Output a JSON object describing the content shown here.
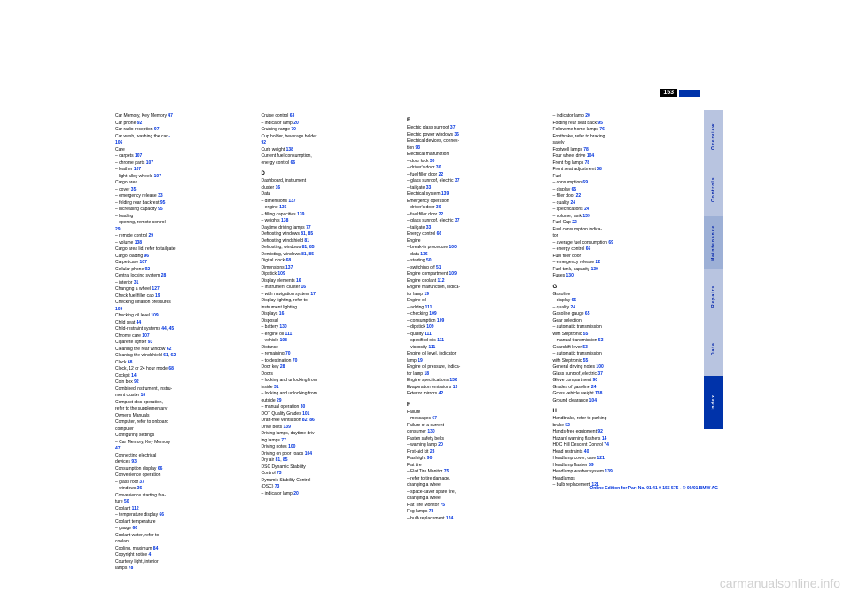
{
  "pageNumber": "153",
  "watermark": "carmanualsonline.info",
  "footer": "Online Edition for Part No. 01 41 0 155 575 - © 09/01 BMW AG",
  "tabs": [
    {
      "label": "Overview",
      "cls": "tab-light"
    },
    {
      "label": "Controls",
      "cls": "tab-light"
    },
    {
      "label": "Maintenance",
      "cls": "tab-med"
    },
    {
      "label": "Repairs",
      "cls": "tab-light"
    },
    {
      "label": "Data",
      "cls": "tab-light"
    },
    {
      "label": "Index",
      "cls": "tab-dark"
    }
  ],
  "columns": [
    [
      {
        "t": "Car Memory, Key Memory",
        "p": "47"
      },
      {
        "t": "Car phone",
        "p": "92"
      },
      {
        "t": "Car radio reception",
        "p": "97"
      },
      {
        "t": "Car wash, washing the car",
        "p": "-"
      },
      {
        "t": "   ",
        "p": "106"
      },
      {
        "t": "Care",
        "p": ""
      },
      {
        "t": "– carpets",
        "p": "107"
      },
      {
        "t": "– chrome parts",
        "p": "107"
      },
      {
        "t": "– leather",
        "p": "107"
      },
      {
        "t": "– light-alloy wheels",
        "p": "107"
      },
      {
        "t": "Cargo area",
        "p": ""
      },
      {
        "t": "– cover",
        "p": "35"
      },
      {
        "t": "– emergency release",
        "p": "33"
      },
      {
        "t": "– folding rear backrest",
        "p": "95"
      },
      {
        "t": "– increasing capacity",
        "p": "95"
      },
      {
        "t": "– loading",
        "p": ""
      },
      {
        "t": "– opening, remote control",
        "p": ""
      },
      {
        "t": "    ",
        "p": "29"
      },
      {
        "t": "– remote control",
        "p": "29"
      },
      {
        "t": "– volume",
        "p": "138"
      },
      {
        "t": "Cargo area lid, refer to tailgate",
        "p": ""
      },
      {
        "t": "Cargo loading",
        "p": "96"
      },
      {
        "t": "Carpet care",
        "p": "107"
      },
      {
        "t": "Cellular phone",
        "p": "92"
      },
      {
        "t": "Central locking system",
        "p": "28"
      },
      {
        "t": "– interior",
        "p": "31"
      },
      {
        "t": "Changing a wheel",
        "p": "127"
      },
      {
        "t": "Check fuel filler cap",
        "p": "19"
      },
      {
        "t": "Checking inflation pressures",
        "p": ""
      },
      {
        "t": "   ",
        "p": "109"
      },
      {
        "t": "Checking oil level",
        "p": "109"
      },
      {
        "t": "Child seat",
        "p": "44"
      },
      {
        "t": "Child-restraint systems",
        "p": "44",
        "p2": "45"
      },
      {
        "t": "Chrome care",
        "p": "107"
      },
      {
        "t": "Cigarette lighter",
        "p": "93"
      },
      {
        "t": "Cleaning the rear window",
        "p": "62"
      },
      {
        "t": "Cleaning the windshield",
        "p": "61",
        "p2": "62"
      },
      {
        "t": "Clock",
        "p": "68"
      },
      {
        "t": "Clock, 12 or 24 hour mode",
        "p": "68"
      },
      {
        "t": "Cockpit",
        "p": "14"
      },
      {
        "t": "Coin box",
        "p": "92"
      },
      {
        "t": "Combined instrument, instru-",
        "p": ""
      },
      {
        "t": "   ment cluster",
        "p": "16"
      },
      {
        "t": "Compact disc operation,",
        "p": ""
      },
      {
        "t": "   refer to the supplementary",
        "p": ""
      },
      {
        "t": "   Owner's Manuals",
        "p": ""
      },
      {
        "t": "Computer, refer to onboard",
        "p": ""
      },
      {
        "t": "   computer",
        "p": ""
      },
      {
        "t": "Configuring settings",
        "p": ""
      },
      {
        "t": "– Car Memory, Key Memory",
        "p": ""
      },
      {
        "t": "   ",
        "p": "47"
      },
      {
        "t": "Connecting electrical",
        "p": ""
      },
      {
        "t": "   devices",
        "p": "93"
      },
      {
        "t": "Consumption display",
        "p": "66"
      },
      {
        "t": "Convenience operation",
        "p": ""
      },
      {
        "t": "– glass roof",
        "p": "37"
      },
      {
        "t": "– windows",
        "p": "36"
      },
      {
        "t": "Convenience starting fea-",
        "p": ""
      },
      {
        "t": "   ture",
        "p": "50"
      },
      {
        "t": "Coolant",
        "p": "112"
      },
      {
        "t": "– temperature display",
        "p": "66"
      },
      {
        "t": "Coolant temperature",
        "p": ""
      },
      {
        "t": "– gauge",
        "p": "66"
      },
      {
        "t": "Coolant water, refer to",
        "p": ""
      },
      {
        "t": "   coolant",
        "p": ""
      },
      {
        "t": "Cooling, maximum",
        "p": "84"
      },
      {
        "t": "Copyright notice",
        "p": "4"
      },
      {
        "t": "Courtesy light, interior",
        "p": ""
      },
      {
        "t": "   lamps",
        "p": "78"
      }
    ],
    [
      {
        "t": "Cruise control",
        "p": "63"
      },
      {
        "t": "– indicator lamp",
        "p": "20"
      },
      {
        "t": "Cruising range",
        "p": "70"
      },
      {
        "t": "Cup holder, beverage holder",
        "p": ""
      },
      {
        "t": "   ",
        "p": "92"
      },
      {
        "t": "Curb weight",
        "p": "138"
      },
      {
        "t": "Current fuel consumption,",
        "p": ""
      },
      {
        "t": "   energy control",
        "p": "66"
      },
      {
        "t": "",
        "p": ""
      },
      {
        "t": "D",
        "p": "",
        "letter": true
      },
      {
        "t": "Dashboard, instrument",
        "p": ""
      },
      {
        "t": "   cluster",
        "p": "16"
      },
      {
        "t": "Data",
        "p": ""
      },
      {
        "t": "– dimensions",
        "p": "137"
      },
      {
        "t": "– engine",
        "p": "136"
      },
      {
        "t": "– filling capacities",
        "p": "139"
      },
      {
        "t": "– weights",
        "p": "138"
      },
      {
        "t": "Daytime driving lamps",
        "p": "77"
      },
      {
        "t": "Defrosting windows",
        "p": "81",
        "p2": "85"
      },
      {
        "t": "Defrosting windshield",
        "p": "81"
      },
      {
        "t": "Defrosting, windows",
        "p": "81",
        "p2": "85"
      },
      {
        "t": "Demisting, windows",
        "p": "81",
        "p2": "85"
      },
      {
        "t": "Digital clock",
        "p": "68"
      },
      {
        "t": "Dimensions",
        "p": "137"
      },
      {
        "t": "Dipstick",
        "p": "109"
      },
      {
        "t": "Display elements",
        "p": "16"
      },
      {
        "t": "– instrument cluster",
        "p": "16"
      },
      {
        "t": "– with navigation system",
        "p": "17"
      },
      {
        "t": "Display lighting, refer to",
        "p": ""
      },
      {
        "t": "   instrument lighting",
        "p": ""
      },
      {
        "t": "Displays",
        "p": "16"
      },
      {
        "t": "Disposal",
        "p": ""
      },
      {
        "t": "– battery",
        "p": "130"
      },
      {
        "t": "– engine oil",
        "p": "111"
      },
      {
        "t": "– vehicle",
        "p": "108"
      },
      {
        "t": "Distance",
        "p": ""
      },
      {
        "t": "– remaining",
        "p": "70"
      },
      {
        "t": "– to destination",
        "p": "70"
      },
      {
        "t": "Door key",
        "p": "28"
      },
      {
        "t": "Doors",
        "p": ""
      },
      {
        "t": "– locking and unlocking from",
        "p": ""
      },
      {
        "t": "   inside",
        "p": "31"
      },
      {
        "t": "– locking and unlocking from",
        "p": ""
      },
      {
        "t": "   outside",
        "p": "29"
      },
      {
        "t": "– manual operation",
        "p": "30"
      },
      {
        "t": "DOT Quality Grades",
        "p": "101"
      },
      {
        "t": "Draft-free ventilation",
        "p": "82",
        "p2": "86"
      },
      {
        "t": "Drive belts",
        "p": "139"
      },
      {
        "t": "Driving lamps, daytime driv-",
        "p": ""
      },
      {
        "t": "   ing lamps",
        "p": "77"
      },
      {
        "t": "Driving notes",
        "p": "100"
      },
      {
        "t": "Driving on poor roads",
        "p": "104"
      },
      {
        "t": "Dry air",
        "p": "81",
        "p2": "85"
      },
      {
        "t": "DSC Dynamic Stability",
        "p": ""
      },
      {
        "t": "   Control",
        "p": "73"
      },
      {
        "t": "Dynamic Stability Control",
        "p": ""
      },
      {
        "t": "   (DSC)",
        "p": "73"
      },
      {
        "t": "– indicator lamp",
        "p": "20"
      }
    ],
    [
      {
        "t": "E",
        "p": "",
        "letter": true
      },
      {
        "t": "Electric glass sunroof",
        "p": "37"
      },
      {
        "t": "Electric power windows",
        "p": "36"
      },
      {
        "t": "Electrical devices, connec-",
        "p": ""
      },
      {
        "t": "   tion",
        "p": "93"
      },
      {
        "t": "Electrical malfunction",
        "p": ""
      },
      {
        "t": "– door lock",
        "p": "30"
      },
      {
        "t": "– driver's door",
        "p": "30"
      },
      {
        "t": "– fuel filler door",
        "p": "22"
      },
      {
        "t": "– glass sunroof, electric",
        "p": "37"
      },
      {
        "t": "– tailgate",
        "p": "33"
      },
      {
        "t": "Electrical system",
        "p": "139"
      },
      {
        "t": "Emergency operation",
        "p": ""
      },
      {
        "t": "– driver's door",
        "p": "30"
      },
      {
        "t": "– fuel filler door",
        "p": "22"
      },
      {
        "t": "– glass sunroof, electric",
        "p": "37"
      },
      {
        "t": "– tailgate",
        "p": "33"
      },
      {
        "t": "Energy control",
        "p": "66"
      },
      {
        "t": "Engine",
        "p": ""
      },
      {
        "t": "– break-in procedure",
        "p": "100"
      },
      {
        "t": "– data",
        "p": "136"
      },
      {
        "t": "– starting",
        "p": "50"
      },
      {
        "t": "– switching off",
        "p": "51"
      },
      {
        "t": "Engine compartment",
        "p": "109"
      },
      {
        "t": "Engine coolant",
        "p": "112"
      },
      {
        "t": "Engine malfunction, indica-",
        "p": ""
      },
      {
        "t": "   tor lamp",
        "p": "19"
      },
      {
        "t": "Engine oil",
        "p": ""
      },
      {
        "t": "– adding",
        "p": "111"
      },
      {
        "t": "– checking",
        "p": "109"
      },
      {
        "t": "– consumption",
        "p": "109"
      },
      {
        "t": "– dipstick",
        "p": "109"
      },
      {
        "t": "– quality",
        "p": "111"
      },
      {
        "t": "– specified oils",
        "p": "111"
      },
      {
        "t": "– viscosity",
        "p": "111"
      },
      {
        "t": "Engine oil level, indicator",
        "p": ""
      },
      {
        "t": "   lamp",
        "p": "19"
      },
      {
        "t": "Engine oil pressure, indica-",
        "p": ""
      },
      {
        "t": "   tor lamp",
        "p": "18"
      },
      {
        "t": "Engine specifications",
        "p": "136"
      },
      {
        "t": "Evaporation emissions",
        "p": "19"
      },
      {
        "t": "Exterior mirrors",
        "p": "42"
      },
      {
        "t": "",
        "p": ""
      },
      {
        "t": "F",
        "p": "",
        "letter": true
      },
      {
        "t": "Failure",
        "p": ""
      },
      {
        "t": "– messages",
        "p": "67"
      },
      {
        "t": "Failure of a current",
        "p": ""
      },
      {
        "t": "   consumer",
        "p": "130"
      },
      {
        "t": "Fasten safety belts",
        "p": ""
      },
      {
        "t": "– warning lamp",
        "p": "20"
      },
      {
        "t": "First-aid kit",
        "p": "23"
      },
      {
        "t": "Flashlight",
        "p": "90"
      },
      {
        "t": "Flat tire",
        "p": ""
      },
      {
        "t": "– Flat Tire Monitor",
        "p": "75"
      },
      {
        "t": "– refer to tire damage,",
        "p": ""
      },
      {
        "t": "   changing a wheel",
        "p": ""
      },
      {
        "t": "– space-saver spare tire,",
        "p": ""
      },
      {
        "t": "   changing a wheel",
        "p": ""
      },
      {
        "t": "Flat Tire Monitor",
        "p": "75"
      },
      {
        "t": "Fog lamps",
        "p": "78"
      },
      {
        "t": "– bulb replacement",
        "p": "124"
      }
    ],
    [
      {
        "t": "– indicator lamp",
        "p": "20"
      },
      {
        "t": "Folding rear seat back",
        "p": "95"
      },
      {
        "t": "Follow me home lamps",
        "p": "76"
      },
      {
        "t": "Footbrake, refer to braking",
        "p": ""
      },
      {
        "t": "   safely",
        "p": ""
      },
      {
        "t": "Footwell lamps",
        "p": "78"
      },
      {
        "t": "Four wheel drive",
        "p": "104"
      },
      {
        "t": "Front fog lamps",
        "p": "78"
      },
      {
        "t": "Front seat adjustment",
        "p": "38"
      },
      {
        "t": "Fuel",
        "p": ""
      },
      {
        "t": "– consumption",
        "p": "69"
      },
      {
        "t": "– display",
        "p": "65"
      },
      {
        "t": "– filler door",
        "p": "22"
      },
      {
        "t": "– quality",
        "p": "24"
      },
      {
        "t": "– specifications",
        "p": "24"
      },
      {
        "t": "– volume, tank",
        "p": "139"
      },
      {
        "t": "Fuel Cap",
        "p": "22"
      },
      {
        "t": "Fuel consumption indica-",
        "p": ""
      },
      {
        "t": "   tor",
        "p": ""
      },
      {
        "t": "– average fuel consumption",
        "p": "69"
      },
      {
        "t": "– energy control",
        "p": "66"
      },
      {
        "t": "Fuel filler door",
        "p": ""
      },
      {
        "t": "– emergency release",
        "p": "22"
      },
      {
        "t": "Fuel tank, capacity",
        "p": "139"
      },
      {
        "t": "Fuses",
        "p": "130"
      },
      {
        "t": "",
        "p": ""
      },
      {
        "t": "G",
        "p": "",
        "letter": true
      },
      {
        "t": "Gasoline",
        "p": ""
      },
      {
        "t": "– display",
        "p": "65"
      },
      {
        "t": "– quality",
        "p": "24"
      },
      {
        "t": "Gasoline gauge",
        "p": "65"
      },
      {
        "t": "Gear selection",
        "p": ""
      },
      {
        "t": "– automatic transmission",
        "p": ""
      },
      {
        "t": "   with Steptronic",
        "p": "55"
      },
      {
        "t": "– manual transmission",
        "p": "53"
      },
      {
        "t": "Gearshift lever",
        "p": "53"
      },
      {
        "t": "– automatic transmission",
        "p": ""
      },
      {
        "t": "   with Steptronic",
        "p": "55"
      },
      {
        "t": "General driving notes",
        "p": "100"
      },
      {
        "t": "Glass sunroof, electric",
        "p": "37"
      },
      {
        "t": "Glove compartment",
        "p": "90"
      },
      {
        "t": "Grades of gasoline",
        "p": "24"
      },
      {
        "t": "Gross vehicle weight",
        "p": "138"
      },
      {
        "t": "Ground clearance",
        "p": "104"
      },
      {
        "t": "",
        "p": ""
      },
      {
        "t": "H",
        "p": "",
        "letter": true
      },
      {
        "t": "Handbrake, refer to parking",
        "p": ""
      },
      {
        "t": "   brake",
        "p": "52"
      },
      {
        "t": "Hands-free equipment",
        "p": "92"
      },
      {
        "t": "Hazard warning flashers",
        "p": "14"
      },
      {
        "t": "HDC Hill Descent Control",
        "p": "74"
      },
      {
        "t": "Head restraints",
        "p": "40"
      },
      {
        "t": "Headlamp cover, care",
        "p": "121"
      },
      {
        "t": "Headlamp flasher",
        "p": "59"
      },
      {
        "t": "Headlamp washer system",
        "p": "139"
      },
      {
        "t": "Headlamps",
        "p": ""
      },
      {
        "t": "– bulb replacement",
        "p": "121"
      }
    ]
  ]
}
